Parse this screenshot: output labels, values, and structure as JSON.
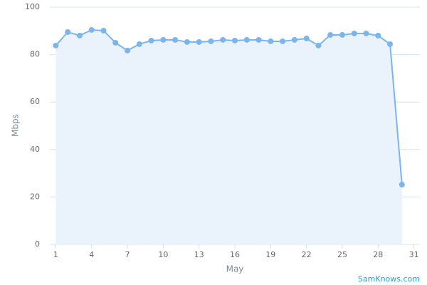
{
  "chart_data": {
    "type": "area",
    "x": [
      1,
      2,
      3,
      4,
      5,
      6,
      7,
      8,
      9,
      10,
      11,
      12,
      13,
      14,
      15,
      16,
      17,
      18,
      19,
      20,
      21,
      22,
      23,
      24,
      25,
      26,
      27,
      28,
      29,
      30
    ],
    "series": [
      {
        "name": "Mbps",
        "color": "#7cb5ec",
        "fill": "#eaf2fc",
        "values": [
          83.8,
          89.5,
          88.0,
          90.4,
          90.1,
          85.0,
          81.7,
          84.4,
          85.9,
          86.2,
          86.2,
          85.3,
          85.3,
          85.6,
          86.2,
          85.9,
          86.2,
          86.2,
          85.6,
          85.6,
          86.2,
          86.8,
          83.8,
          88.3,
          88.3,
          88.9,
          88.9,
          88.0,
          84.4,
          25.2
        ]
      }
    ],
    "xlabel": "May",
    "ylabel": "Mbps",
    "xlim": [
      0.5,
      31.5
    ],
    "xticks": [
      1,
      4,
      7,
      10,
      13,
      16,
      19,
      22,
      25,
      28,
      31
    ],
    "ylim": [
      0,
      100
    ],
    "yticks": [
      0,
      20,
      40,
      60,
      80,
      100
    ],
    "grid": true,
    "credit": "SamKnows.com"
  }
}
